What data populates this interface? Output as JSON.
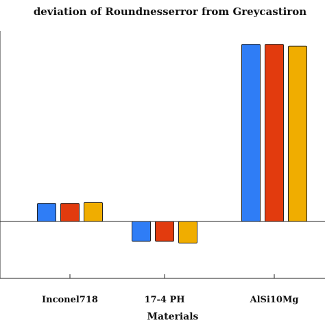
{
  "chart_data": {
    "type": "bar",
    "title": "deviation of Roundnesserror from Greycastiron",
    "xlabel": "Materials",
    "ylabel": "",
    "categories": [
      "Inconel718",
      "17-4 PH",
      "AlSi10Mg"
    ],
    "series": [
      {
        "values": [
          0.1,
          -0.11,
          0.98
        ]
      },
      {
        "values": [
          0.1,
          -0.11,
          0.98
        ]
      },
      {
        "values": [
          0.105,
          -0.12,
          0.97
        ]
      }
    ],
    "colors": [
      "#2f7df6",
      "#e23b0e",
      "#f0ad00"
    ],
    "ylim": [
      -0.34,
      1.08
    ],
    "grid": false,
    "legend": "none"
  }
}
